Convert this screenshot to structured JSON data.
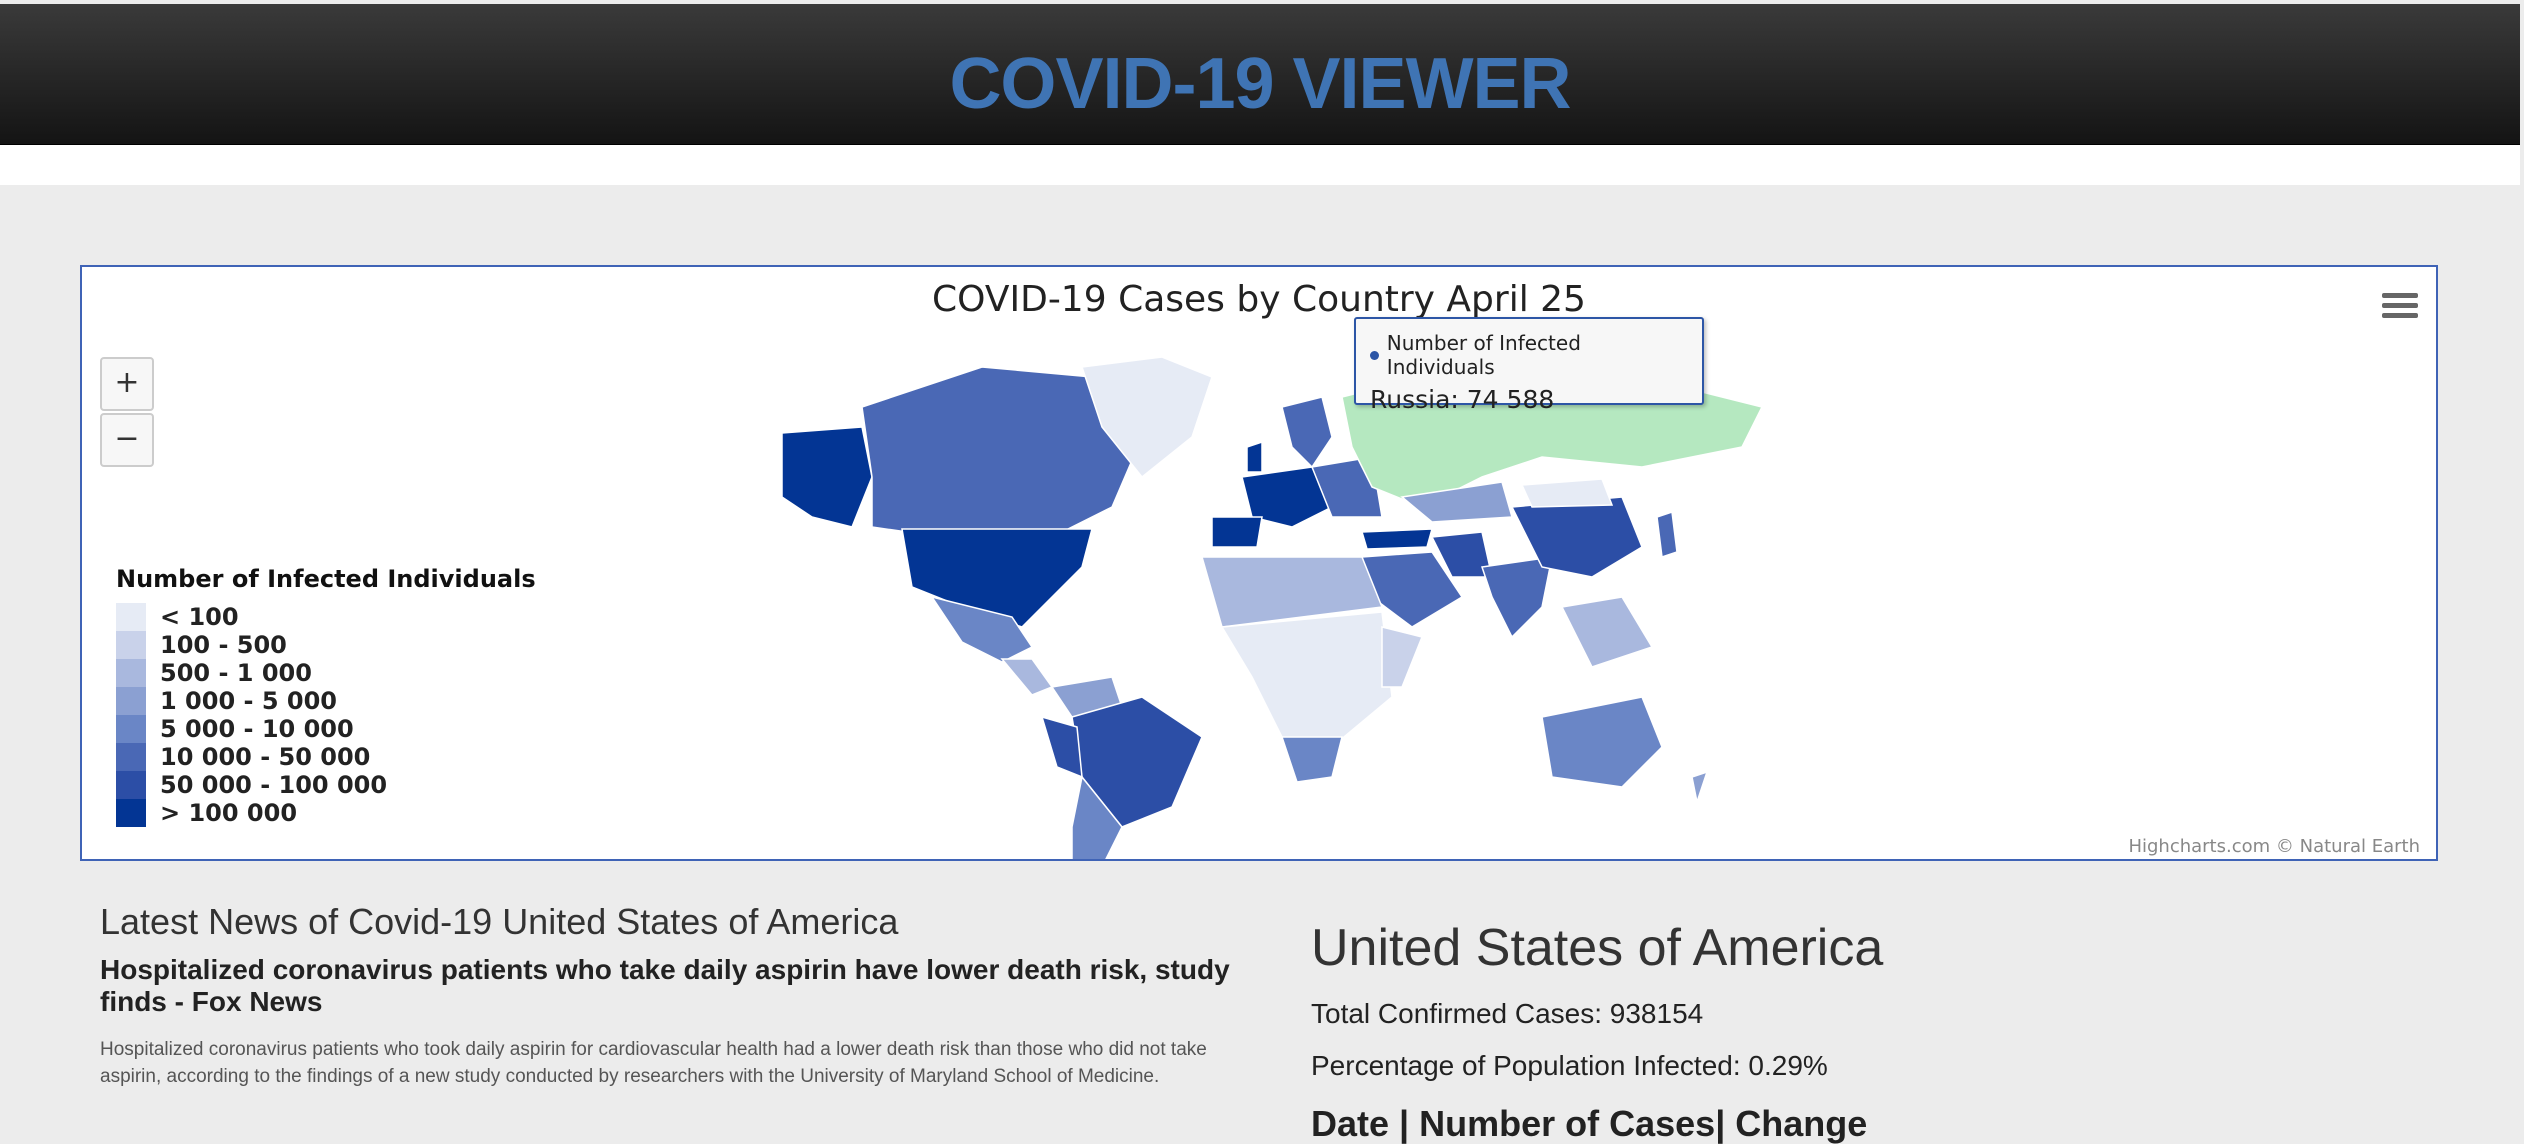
{
  "header": {
    "title": "COVID-19 VIEWER"
  },
  "map": {
    "title": "COVID-19 Cases by Country April 25",
    "zoom_in_label": "+",
    "zoom_out_label": "−",
    "legend": {
      "title": "Number of Infected Individuals",
      "items": [
        {
          "label": "< 100",
          "color": "#e6ebf5"
        },
        {
          "label": "100 - 500",
          "color": "#c9d2ea"
        },
        {
          "label": "500 - 1 000",
          "color": "#a9b8de"
        },
        {
          "label": "1 000 - 5 000",
          "color": "#8ba0d2"
        },
        {
          "label": "5 000 - 10 000",
          "color": "#6a86c6"
        },
        {
          "label": "10 000 - 50 000",
          "color": "#4a68b5"
        },
        {
          "label": "50 000 - 100 000",
          "color": "#2c4ea6"
        },
        {
          "label": "> 100 000",
          "color": "#033594"
        }
      ]
    },
    "tooltip": {
      "series": "Number of Infected Individuals",
      "value": "Russia: 74 588"
    },
    "hover_color": "#b5e8c0",
    "credits": "Highcharts.com © Natural Earth"
  },
  "news": {
    "heading": "Latest News of Covid-19 United States of America",
    "headline": "Hospitalized coronavirus patients who take daily aspirin have lower death risk, study finds - Fox News",
    "summary": "Hospitalized coronavirus patients who took daily aspirin for cardiovascular health had a lower death risk than those who did not take aspirin, according to the findings of a new study conducted by researchers with the University of Maryland School of Medicine."
  },
  "country": {
    "name": "United States of America",
    "total_cases": "Total Confirmed Cases: 938154",
    "percent_infected": "Percentage of Population Infected: 0.29%",
    "table_header": "Date    | Number of Cases| Change"
  }
}
